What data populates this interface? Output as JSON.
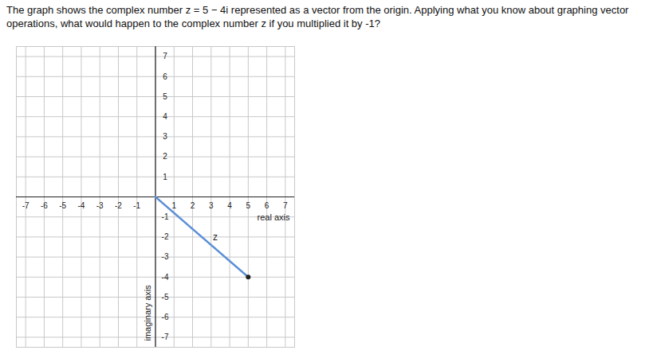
{
  "chart_data": {
    "type": "line",
    "title": "The graph shows the complex number z = 5 − 4i represented as a vector from the origin. Applying what you know about graphing vector operations, what would happen to the complex number z if you multiplied it by -1?",
    "x_label": "real axis",
    "y_label": "imaginary axis",
    "vector_label": "z",
    "x": [
      0,
      5
    ],
    "values": [
      0,
      -4
    ],
    "color": "#5b8fd6",
    "marker": "dot",
    "xlim": [
      -7.5,
      7.5
    ],
    "ylim": [
      -7.5,
      7.5
    ],
    "xticks": [
      -7,
      -6,
      -5,
      -4,
      -3,
      -2,
      -1,
      1,
      2,
      3,
      4,
      5,
      6,
      7
    ],
    "yticks": [
      -7,
      -6,
      -5,
      -4,
      -3,
      -2,
      -1,
      1,
      2,
      3,
      4,
      5,
      6,
      7
    ],
    "grid": true
  }
}
